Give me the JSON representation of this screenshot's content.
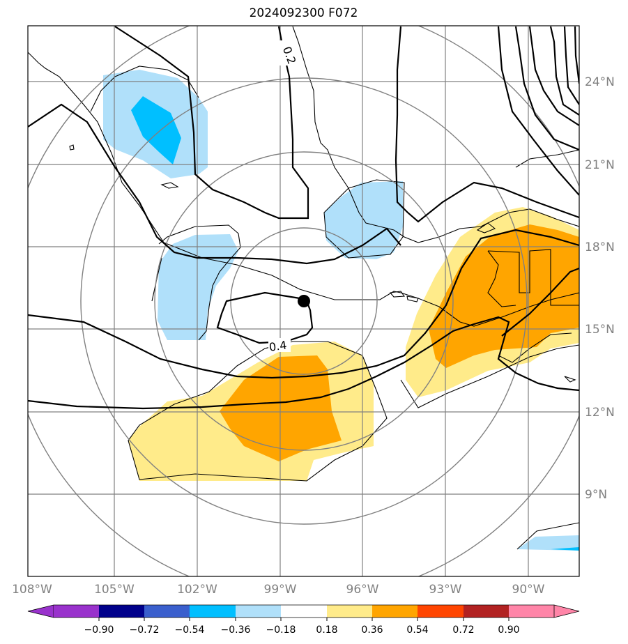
{
  "title": "2024092300 F072",
  "map": {
    "lon_labels": [
      "108°W",
      "105°W",
      "102°W",
      "99°W",
      "96°W",
      "93°W",
      "90°W"
    ],
    "lat_labels": [
      "24°N",
      "21°N",
      "18°N",
      "15°N",
      "12°N",
      "9°N"
    ],
    "contour_labels": [
      "0.2",
      "0.4"
    ],
    "storm_center": {
      "lon": -98.0,
      "lat": 16.1
    },
    "colors": {
      "frame": "#000000",
      "grid": "#808080",
      "coast": "#000000"
    }
  },
  "colorbar": {
    "ticks": [
      "−0.90",
      "−0.72",
      "−0.54",
      "−0.36",
      "−0.18",
      "0.18",
      "0.36",
      "0.54",
      "0.72",
      "0.90"
    ],
    "colors": [
      "#9932cc",
      "#00008b",
      "#3a5fcd",
      "#00bfff",
      "#b0e0fa",
      "#ffffff",
      "#ffeb8a",
      "#ffa500",
      "#ff4500",
      "#b22222",
      "#ff85a8"
    ]
  }
}
